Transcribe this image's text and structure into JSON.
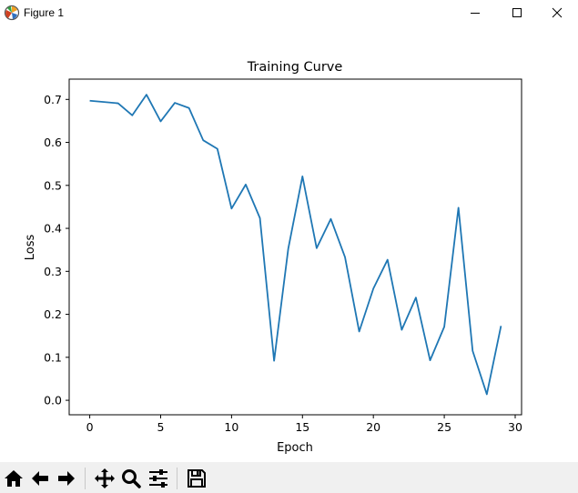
{
  "window": {
    "title": "Figure 1",
    "controls": [
      "minimize",
      "maximize",
      "close"
    ]
  },
  "chart_data": {
    "type": "line",
    "title": "Training Curve",
    "xlabel": "Epoch",
    "ylabel": "Loss",
    "xlim": [
      -1.45,
      30.45
    ],
    "ylim": [
      -0.0337,
      0.7472
    ],
    "xticks": [
      0,
      5,
      10,
      15,
      20,
      25,
      30
    ],
    "xtick_labels": [
      "0",
      "5",
      "10",
      "15",
      "20",
      "25",
      "30"
    ],
    "yticks": [
      0.0,
      0.1,
      0.2,
      0.3,
      0.4,
      0.5,
      0.6,
      0.7
    ],
    "ytick_labels": [
      "0.0",
      "0.1",
      "0.2",
      "0.3",
      "0.4",
      "0.5",
      "0.6",
      "0.7"
    ],
    "grid": false,
    "series": [
      {
        "color": "#1f77b4",
        "x": [
          0,
          1,
          2,
          3,
          4,
          5,
          6,
          7,
          8,
          9,
          10,
          11,
          12,
          13,
          14,
          15,
          16,
          17,
          18,
          19,
          20,
          21,
          22,
          23,
          24,
          25,
          26,
          27,
          28,
          29
        ],
        "y": [
          0.697,
          0.694,
          0.691,
          0.663,
          0.711,
          0.649,
          0.692,
          0.68,
          0.605,
          0.585,
          0.446,
          0.502,
          0.424,
          0.092,
          0.353,
          0.521,
          0.354,
          0.422,
          0.333,
          0.16,
          0.26,
          0.327,
          0.164,
          0.239,
          0.093,
          0.171,
          0.448,
          0.115,
          0.014,
          0.173
        ]
      }
    ]
  },
  "toolbar": {
    "buttons": [
      {
        "name": "home-button",
        "icon": "home-icon"
      },
      {
        "name": "back-button",
        "icon": "arrow-left-icon"
      },
      {
        "name": "forward-button",
        "icon": "arrow-right-icon"
      },
      {
        "name": "pan-button",
        "icon": "move-icon"
      },
      {
        "name": "zoom-button",
        "icon": "magnifier-icon"
      },
      {
        "name": "configure-subplots-button",
        "icon": "sliders-icon"
      },
      {
        "name": "save-button",
        "icon": "floppy-disk-icon"
      }
    ]
  }
}
